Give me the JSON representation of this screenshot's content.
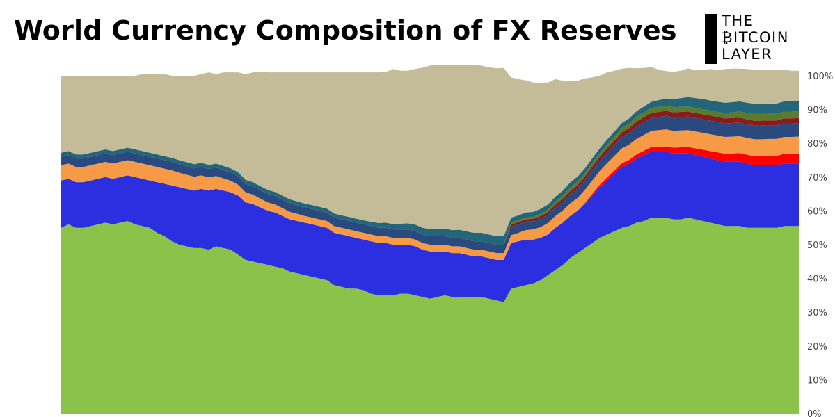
{
  "title": "World Currency Composition of FX Reserves",
  "logo": {
    "line1": "THE",
    "line2": "₿ITCOIN",
    "line3": "LAYER"
  },
  "chart_data": {
    "type": "area",
    "stacked": true,
    "ylim": [
      0,
      100
    ],
    "y_ticks": [
      "0%",
      "10%",
      "20%",
      "30%",
      "40%",
      "50%",
      "60%",
      "70%",
      "80%",
      "90%",
      "100%"
    ],
    "y_axis_side": "right",
    "grid": false,
    "legend": "none",
    "x": [
      0,
      1,
      2,
      3,
      4,
      5,
      6,
      7,
      8,
      9,
      10,
      11,
      12,
      13,
      14,
      15,
      16,
      17,
      18,
      19,
      20,
      21,
      22,
      23,
      24,
      25,
      26,
      27,
      28,
      29,
      30,
      31,
      32,
      33,
      34,
      35,
      36,
      37,
      38,
      39,
      40,
      41,
      42,
      43,
      44,
      45,
      46,
      47,
      48,
      49,
      50,
      51,
      52,
      53,
      54,
      55,
      56,
      57,
      58,
      59,
      60,
      61,
      62,
      63,
      64,
      65,
      66,
      67,
      68,
      69,
      70,
      71,
      72,
      73,
      74,
      75,
      76,
      77,
      78,
      79,
      80,
      81,
      82,
      83,
      84,
      85,
      86,
      87,
      88,
      89,
      90,
      91,
      92,
      93,
      94,
      95,
      96,
      97,
      98,
      99,
      100
    ],
    "series": [
      {
        "color": "#8bc34a",
        "values": [
          55,
          56,
          55,
          55,
          55.5,
          56,
          56.5,
          56,
          56.5,
          57,
          56,
          55.5,
          55,
          53.5,
          52.5,
          51,
          50,
          49.5,
          49,
          49,
          48.5,
          49.5,
          49,
          48.5,
          47,
          45.5,
          45,
          44.5,
          44,
          43.5,
          43,
          42,
          41.5,
          41,
          40.5,
          40,
          39.5,
          38,
          37.5,
          37,
          37,
          36.5,
          35.5,
          35,
          35,
          35,
          35.5,
          35.5,
          35,
          34.5,
          34,
          34.5,
          35,
          34.5,
          34.5,
          34.5,
          34.5,
          34.5,
          34,
          33.5,
          33,
          37,
          37.5,
          38,
          38.5,
          39.5,
          41,
          42.5,
          44,
          46,
          47.5,
          49,
          50.5,
          52,
          53,
          54,
          55,
          55.5,
          56.5,
          57,
          58,
          58,
          58,
          57.5,
          57.5,
          58,
          57.5,
          57,
          56.5,
          56,
          55.5,
          55.5,
          55.5,
          55,
          55,
          55,
          55,
          55,
          55.5,
          55.5,
          55.5
        ]
      },
      {
        "color": "#2b2fe0",
        "values": [
          14,
          13.5,
          13.5,
          13.5,
          13.5,
          13.5,
          13.5,
          13.5,
          13.5,
          13.5,
          14,
          14,
          14,
          15,
          15.5,
          16.5,
          17,
          17,
          17,
          17.5,
          17.5,
          17,
          17,
          17,
          17.5,
          17,
          17,
          16.5,
          16,
          16,
          15.5,
          15.5,
          15.5,
          15.5,
          15.5,
          15.5,
          15.5,
          15.5,
          15.5,
          15.5,
          15,
          15,
          15.5,
          15.5,
          15.5,
          15,
          14.5,
          14.5,
          14.5,
          14,
          14,
          13.5,
          13,
          13,
          13,
          12.5,
          12,
          12,
          12,
          12,
          12.5,
          13.5,
          13.5,
          13.5,
          13,
          12.5,
          12,
          12.5,
          12.5,
          12.5,
          12.5,
          13,
          14,
          15,
          16,
          17,
          18,
          18.5,
          19,
          19.5,
          19.5,
          19.5,
          19.5,
          19.5,
          19.5,
          19,
          19,
          19,
          19,
          19,
          19,
          19,
          19,
          19,
          18.5,
          18.5,
          18.5,
          18.5,
          18.5,
          18.5,
          18.5
        ]
      },
      {
        "color": "#ff0000",
        "values": [
          0,
          0,
          0,
          0,
          0,
          0,
          0,
          0,
          0,
          0,
          0,
          0,
          0,
          0,
          0,
          0,
          0,
          0,
          0,
          0,
          0,
          0,
          0,
          0,
          0,
          0,
          0,
          0,
          0,
          0,
          0,
          0,
          0,
          0,
          0,
          0,
          0,
          0,
          0,
          0,
          0,
          0,
          0,
          0,
          0,
          0,
          0,
          0,
          0,
          0,
          0,
          0,
          0,
          0,
          0,
          0,
          0,
          0,
          0,
          0,
          0,
          0,
          0,
          0,
          0,
          0,
          0,
          0,
          0,
          0,
          0,
          0.3,
          0.5,
          0.7,
          0.9,
          1,
          1.1,
          1.1,
          1.2,
          1.3,
          1.4,
          1.5,
          1.6,
          1.7,
          1.8,
          1.9,
          2,
          2.1,
          2.2,
          2.3,
          2.4,
          2.5,
          2.6,
          2.6,
          2.7,
          2.7,
          2.8,
          2.8,
          2.9,
          2.9,
          3
        ]
      },
      {
        "color": "#f79a46",
        "values": [
          4.5,
          4.5,
          4.5,
          4.5,
          4.5,
          4.5,
          4.5,
          4.5,
          4.5,
          4.5,
          4.5,
          4.5,
          4.5,
          4.5,
          4.5,
          4.5,
          4.3,
          4.2,
          4.1,
          4,
          3.9,
          3.8,
          3.6,
          3.4,
          3.2,
          3,
          2.8,
          2.6,
          2.5,
          2.4,
          2.3,
          2.2,
          2.1,
          2,
          2,
          2,
          2,
          2,
          2,
          2,
          2,
          2,
          2,
          2,
          2,
          2,
          2,
          2,
          2,
          2,
          2,
          2,
          2,
          2,
          2,
          2,
          2,
          2,
          2,
          2,
          2,
          2.3,
          2.5,
          2.8,
          3,
          3.2,
          3.4,
          3.5,
          3.6,
          3.7,
          3.8,
          3.9,
          4,
          4.1,
          4.2,
          4.3,
          4.4,
          4.5,
          4.6,
          4.7,
          4.8,
          4.9,
          5,
          5,
          5,
          5,
          5,
          5,
          5,
          5,
          5,
          5,
          5,
          5,
          5,
          5,
          5,
          5,
          5,
          5,
          5
        ]
      },
      {
        "color": "#2a4a7f",
        "values": [
          2.5,
          2.5,
          2.5,
          2.5,
          2.5,
          2.5,
          2.5,
          2.5,
          2.5,
          2.5,
          2.5,
          2.5,
          2.5,
          2.5,
          2.5,
          2.5,
          2.5,
          2.5,
          2.5,
          2.5,
          2.5,
          2.5,
          2.5,
          2.5,
          2.5,
          2.5,
          2.5,
          2.5,
          2.5,
          2.5,
          2.5,
          2.5,
          2.5,
          2.5,
          2.5,
          2.5,
          2.5,
          2.5,
          2.5,
          2.5,
          2.5,
          2.5,
          2.5,
          2.5,
          2.5,
          2.5,
          2.5,
          2.5,
          2.5,
          2.5,
          2.5,
          2.5,
          2.5,
          2.5,
          2.5,
          2.5,
          2.5,
          2.5,
          2.5,
          2.5,
          2.5,
          2.5,
          2.5,
          2.5,
          2.5,
          2.5,
          2.5,
          2.5,
          2.6,
          2.7,
          2.8,
          2.9,
          3,
          3.1,
          3.2,
          3.3,
          3.4,
          3.5,
          3.6,
          3.7,
          3.8,
          3.9,
          4,
          4,
          4,
          4,
          4,
          4,
          4,
          4,
          4,
          4,
          4,
          4,
          4,
          4,
          4,
          4,
          4,
          4,
          4
        ]
      },
      {
        "color": "#8b1a1a",
        "values": [
          0,
          0,
          0,
          0,
          0,
          0,
          0,
          0,
          0,
          0,
          0,
          0,
          0,
          0,
          0,
          0,
          0,
          0,
          0,
          0,
          0,
          0,
          0,
          0,
          0,
          0,
          0,
          0,
          0,
          0,
          0,
          0,
          0,
          0,
          0,
          0,
          0,
          0,
          0,
          0,
          0,
          0,
          0,
          0,
          0,
          0,
          0,
          0,
          0,
          0,
          0,
          0,
          0,
          0,
          0,
          0,
          0,
          0,
          0,
          0,
          0,
          0.7,
          0.7,
          0.7,
          0.7,
          0.8,
          0.8,
          0.9,
          0.9,
          1,
          1,
          1,
          1.1,
          1.1,
          1.2,
          1.2,
          1.3,
          1.4,
          1.5,
          1.5,
          1.5,
          1.5,
          1.5,
          1.5,
          1.5,
          1.5,
          1.5,
          1.5,
          1.5,
          1.5,
          1.5,
          1.5,
          1.5,
          1.5,
          1.5,
          1.5,
          1.5,
          1.5,
          1.5,
          1.5,
          1.5
        ]
      },
      {
        "color": "#5a7a2e",
        "values": [
          0,
          0,
          0,
          0,
          0,
          0,
          0,
          0,
          0,
          0,
          0,
          0,
          0,
          0,
          0,
          0,
          0,
          0,
          0,
          0,
          0,
          0,
          0,
          0,
          0,
          0,
          0,
          0,
          0,
          0,
          0,
          0,
          0,
          0,
          0,
          0,
          0,
          0,
          0,
          0,
          0,
          0,
          0,
          0,
          0,
          0,
          0,
          0,
          0,
          0,
          0,
          0,
          0,
          0,
          0,
          0,
          0,
          0,
          0,
          0,
          0,
          0.5,
          0.5,
          0.5,
          0.5,
          0.6,
          0.7,
          0.8,
          0.9,
          1,
          1,
          1,
          1,
          1,
          1.1,
          1.2,
          1.3,
          1.4,
          1.5,
          1.5,
          1.5,
          1.5,
          1.5,
          1.5,
          1.5,
          1.5,
          1.5,
          1.5,
          1.5,
          1.5,
          1.6,
          1.7,
          1.8,
          1.9,
          2,
          2,
          2,
          2,
          2,
          2,
          2
        ]
      },
      {
        "color": "#23667a",
        "values": [
          1.2,
          1.2,
          1.2,
          1.2,
          1.2,
          1.2,
          1.2,
          1.2,
          1.2,
          1.2,
          1.2,
          1.2,
          1.2,
          1.2,
          1.2,
          1.2,
          1.2,
          1.2,
          1.2,
          1.2,
          1.2,
          1.2,
          1.2,
          1.2,
          1.2,
          1.2,
          1.2,
          1.2,
          1.2,
          1.2,
          1.2,
          1.2,
          1.2,
          1.2,
          1.2,
          1.2,
          1.2,
          1.2,
          1.2,
          1.2,
          1.2,
          1.2,
          1.3,
          1.4,
          1.5,
          1.6,
          1.7,
          1.8,
          1.9,
          2,
          2.1,
          2.2,
          2.3,
          2.3,
          2.4,
          2.4,
          2.5,
          2.5,
          2.5,
          2.5,
          2.5,
          1.5,
          1.5,
          1.5,
          1.5,
          1.5,
          1.5,
          1.5,
          1.5,
          1.5,
          1.5,
          1.5,
          1.5,
          1.5,
          1.5,
          1.5,
          1.5,
          1.5,
          1.6,
          1.7,
          1.8,
          2,
          2.2,
          2.4,
          2.6,
          2.8,
          2.9,
          3,
          3,
          3,
          3,
          3,
          3,
          3,
          3,
          3,
          3,
          3,
          3,
          3,
          3
        ]
      },
      {
        "color": "#c4bc98",
        "values": [
          22.8,
          22.3,
          23.3,
          23.3,
          22.8,
          22.3,
          21.8,
          22.3,
          21.8,
          21.3,
          21.8,
          22.8,
          23.3,
          23.8,
          24.3,
          24.3,
          25,
          25.6,
          26.2,
          26.3,
          27.4,
          26.5,
          27.7,
          28.4,
          29.6,
          31.3,
          32.5,
          33.9,
          34.8,
          35.4,
          36.5,
          37.6,
          38.2,
          38.8,
          39.3,
          39.8,
          40.3,
          41.8,
          42.3,
          42.8,
          43.3,
          43.8,
          44.2,
          44.6,
          44.6,
          45.9,
          45.3,
          45.2,
          46.1,
          47.4,
          48.4,
          48.6,
          48.4,
          49,
          48.7,
          49.2,
          49.7,
          49.5,
          49.5,
          49.7,
          49.8,
          41.5,
          40.3,
          39.1,
          38.3,
          37.2,
          36.1,
          34.8,
          32.5,
          30.1,
          28.4,
          26.6,
          23.9,
          21.5,
          19.9,
          18.0,
          16.1,
          14.9,
          12.7,
          11.4,
          10.3,
          9.0,
          8.1,
          8.1,
          8.1,
          8.5,
          8.2,
          8.6,
          9.3,
          9.4,
          10.0,
          9.9,
          9.7,
          10.0,
          10.1,
          10.1,
          10.0,
          10.0,
          9.4,
          9.1,
          9
        ]
      }
    ]
  }
}
